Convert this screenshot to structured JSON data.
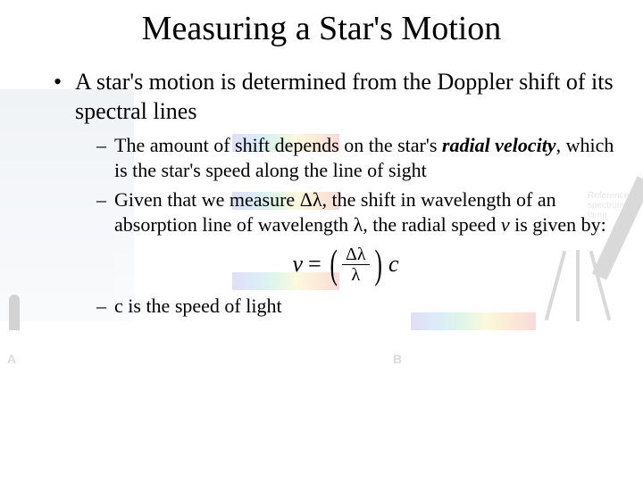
{
  "title": "Measuring a Star's Motion",
  "bullet1": "A star's motion is determined from the Doppler shift of its spectral lines",
  "sub1a": "The amount of shift depends on the star's ",
  "sub1a_em": "radial velocity",
  "sub1a_tail": ", which is the star's speed along the line of sight",
  "sub2a": "Given that we measure Δλ, the shift in wavelength of an absorption line of wavelength λ, the radial speed ",
  "sub2a_v": "v",
  "sub2a_tail": " is given by:",
  "sub3": "c is the speed of light",
  "formula": {
    "lhs": "v",
    "eq": "=",
    "num": "Δλ",
    "den": "λ",
    "rhs": "c"
  },
  "bg": {
    "label_a": "A",
    "label_b": "B",
    "ref": "Reference spectrum lamp"
  }
}
